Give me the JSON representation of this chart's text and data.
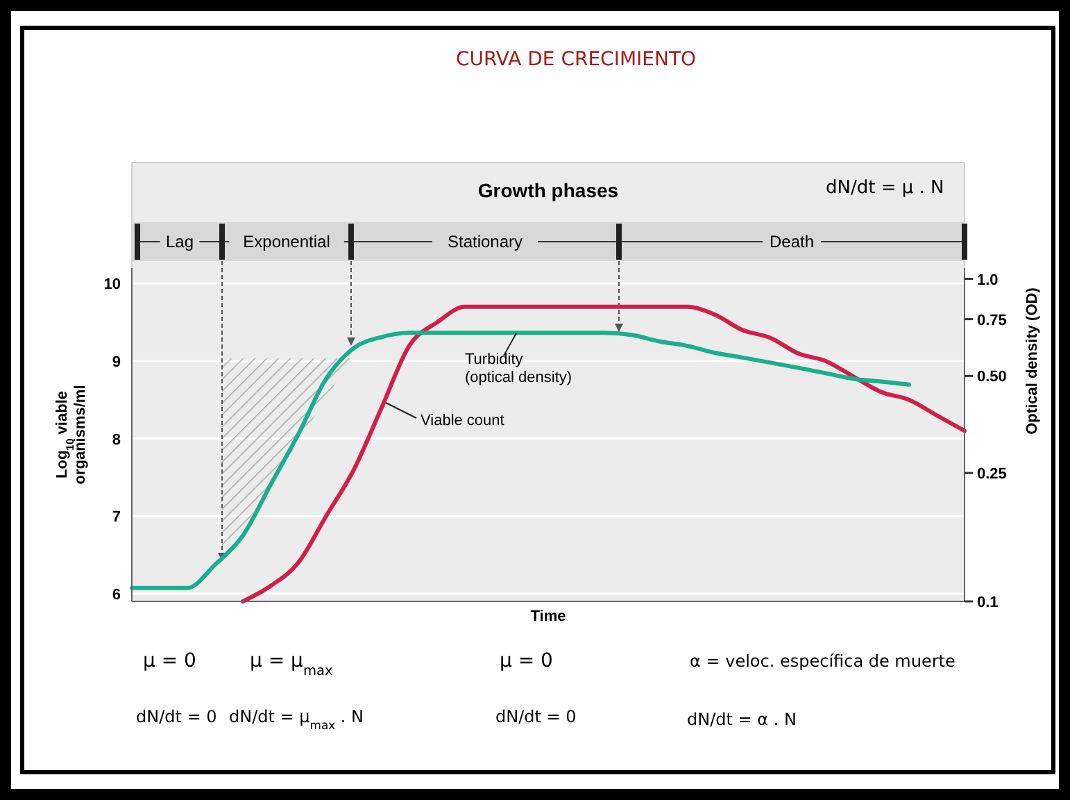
{
  "chart_data": {
    "type": "line",
    "title": "CURVA DE CRECIMIENTO",
    "xlabel": "Time",
    "ylabel": "Log$_{10}$ viable organisms/ml",
    "y2label": "Optical density (OD)",
    "categories": [
      null,
      null,
      null,
      null,
      null,
      null,
      null,
      null,
      null,
      null,
      null,
      null,
      null,
      null,
      null,
      null,
      null,
      null,
      null,
      null,
      null,
      null,
      null,
      null,
      null,
      null,
      null,
      null,
      null,
      null,
      null
    ],
    "series": [
      {
        "name": "Viable count",
        "color": "#d11f4b",
        "values": [
          null,
          null,
          null,
          null,
          5.9,
          6.1,
          6.4,
          7.0,
          7.6,
          8.4,
          9.2,
          9.5,
          9.7,
          9.7,
          9.7,
          9.7,
          9.7,
          9.7,
          9.7,
          9.7,
          9.7,
          9.6,
          9.4,
          9.3,
          9.1,
          9.0,
          8.8,
          8.6,
          8.5,
          8.3,
          8.1
        ]
      },
      {
        "name": "Turbidity (optical density)",
        "color": "#1aae8c",
        "axis": "y2",
        "values": [
          0.11,
          0.11,
          0.11,
          0.13,
          0.16,
          0.23,
          0.33,
          0.49,
          0.61,
          0.66,
          0.68,
          0.68,
          0.68,
          0.68,
          0.68,
          0.68,
          0.68,
          0.68,
          0.67,
          0.64,
          0.62,
          0.59,
          0.57,
          0.55,
          0.53,
          0.51,
          0.49,
          0.48,
          0.47,
          null,
          null
        ]
      }
    ],
    "ylim": [
      5.9,
      10.2
    ],
    "yticks": [
      6,
      7,
      8,
      9,
      10
    ],
    "y2lim": [
      0.1,
      1.08
    ],
    "y2ticks": [
      {
        "value": 1,
        "label": "1.0"
      },
      0.75,
      {
        "value": 0.5,
        "label": "0.50"
      },
      0.25,
      0.1
    ],
    "log": "y2",
    "grid": "y",
    "legend": false,
    "marker": "none",
    "line_style": "solid",
    "annotations": [
      "Growth phases",
      "Lag",
      "Exponential",
      "Stationary",
      "Death",
      "dN/dt = μ . N",
      "μ = 0",
      "μ = μ$_{max}$",
      "μ = 0",
      "α = veloc. específica de muerte",
      "dN/dt = 0",
      "dN/dt = μ$_{max}$ . N",
      "dN/dt = 0",
      "dN/dt = α . N"
    ]
  }
}
